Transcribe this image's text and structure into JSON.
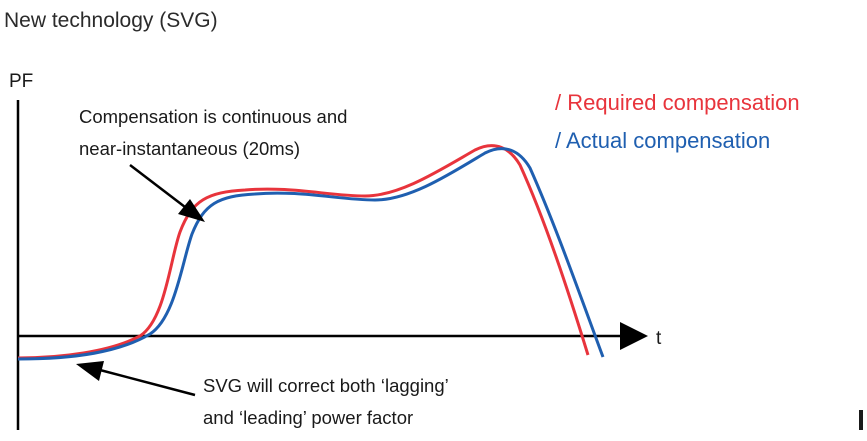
{
  "title": "New technology (SVG)",
  "y_axis_label": "PF",
  "x_axis_label": "t",
  "annotations": {
    "top": {
      "line1": "Compensation is continuous and",
      "line2": "near-instantaneous (20ms)"
    },
    "bottom": {
      "line1": "SVG will correct both ‘lagging’",
      "line2": "and ‘leading’ power factor"
    }
  },
  "legend": [
    {
      "label": "/ Required compensation",
      "color": "#e8343c"
    },
    {
      "label": "/ Actual compensation",
      "color": "#1f5fb0"
    }
  ],
  "colors": {
    "axis": "#000000",
    "required": "#e8343c",
    "actual": "#1f5fb0",
    "text": "#1a1a1a"
  }
}
